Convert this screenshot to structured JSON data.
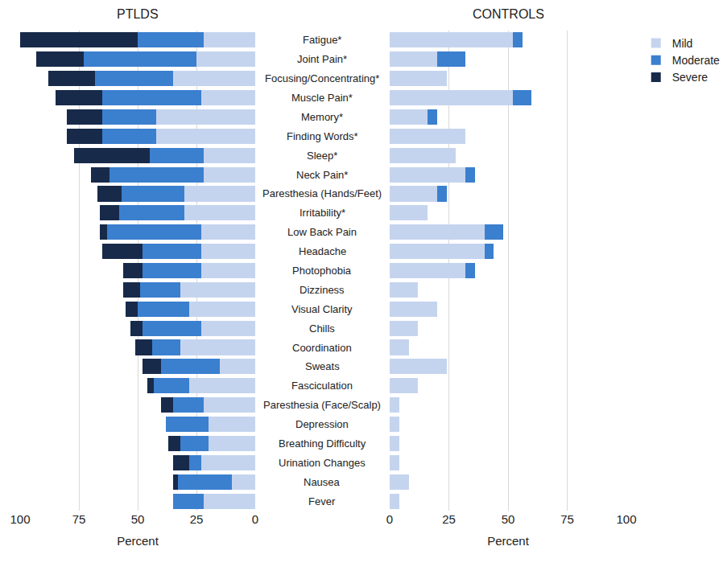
{
  "chart_data": [
    {
      "type": "bar",
      "title": "PTLDS",
      "orientation": "horizontal",
      "stacked": true,
      "grid": true,
      "xlabel": "Percent",
      "xlim": [
        100,
        0
      ],
      "xticks": [
        100,
        75,
        50,
        25,
        0
      ],
      "categories": [
        "Fatigue*",
        "Joint Pain*",
        "Focusing/Concentrating*",
        "Muscle Pain*",
        "Memory*",
        "Finding Words*",
        "Sleep*",
        "Neck Pain*",
        "Paresthesia (Hands/Feet)",
        "Irritability*",
        "Low Back Pain",
        "Headache",
        "Photophobia",
        "Dizziness",
        "Visual Clarity",
        "Chills",
        "Coordination",
        "Sweats",
        "Fasciculation",
        "Paresthesia (Face/Scalp)",
        "Depression",
        "Breathing Difficulty",
        "Urination Changes",
        "Nausea",
        "Fever"
      ],
      "series": [
        {
          "name": "Mild",
          "color": "#c5d4ee",
          "values": [
            22,
            25,
            35,
            23,
            42,
            42,
            22,
            22,
            30,
            30,
            23,
            23,
            23,
            32,
            28,
            23,
            32,
            15,
            28,
            22,
            20,
            20,
            23,
            10,
            22
          ]
        },
        {
          "name": "Moderate",
          "color": "#3b7fcf",
          "values": [
            28,
            48,
            33,
            42,
            23,
            23,
            23,
            40,
            27,
            28,
            40,
            25,
            25,
            17,
            22,
            25,
            12,
            25,
            15,
            13,
            18,
            12,
            5,
            23,
            13
          ]
        },
        {
          "name": "Severe",
          "color": "#182a4a",
          "values": [
            50,
            20,
            20,
            20,
            15,
            15,
            32,
            8,
            10,
            8,
            3,
            17,
            8,
            7,
            5,
            5,
            7,
            8,
            3,
            5,
            0,
            5,
            7,
            2,
            0
          ]
        }
      ]
    },
    {
      "type": "bar",
      "title": "CONTROLS",
      "orientation": "horizontal",
      "stacked": true,
      "grid": true,
      "legend": "top right",
      "tick_labels": "x",
      "xlabel": "Percent",
      "xlim": [
        0,
        100
      ],
      "xticks": [
        0,
        25,
        50,
        75,
        100
      ],
      "categories": [
        "Fatigue*",
        "Joint Pain*",
        "Focusing/Concentrating*",
        "Muscle Pain*",
        "Memory*",
        "Finding Words*",
        "Sleep*",
        "Neck Pain*",
        "Paresthesia (Hands/Feet)",
        "Irritability*",
        "Low Back Pain",
        "Headache",
        "Photophobia",
        "Dizziness",
        "Visual Clarity",
        "Chills",
        "Coordination",
        "Sweats",
        "Fasciculation",
        "Paresthesia (Face/Scalp)",
        "Depression",
        "Breathing Difficulty",
        "Urination Changes",
        "Nausea",
        "Fever"
      ],
      "series": [
        {
          "name": "Mild",
          "color": "#c5d4ee",
          "values": [
            52,
            20,
            24,
            52,
            16,
            32,
            28,
            32,
            20,
            16,
            40,
            40,
            32,
            12,
            20,
            12,
            8,
            24,
            12,
            4,
            4,
            4,
            4,
            8,
            4
          ]
        },
        {
          "name": "Moderate",
          "color": "#3b7fcf",
          "values": [
            4,
            12,
            0,
            8,
            4,
            0,
            0,
            4,
            4,
            0,
            8,
            4,
            4,
            0,
            0,
            0,
            0,
            0,
            0,
            0,
            0,
            0,
            0,
            0,
            0
          ]
        },
        {
          "name": "Severe",
          "color": "#182a4a",
          "values": [
            0,
            0,
            0,
            0,
            0,
            0,
            0,
            0,
            0,
            0,
            0,
            0,
            0,
            0,
            0,
            0,
            0,
            0,
            0,
            0,
            0,
            0,
            0,
            0,
            0
          ]
        }
      ]
    }
  ]
}
